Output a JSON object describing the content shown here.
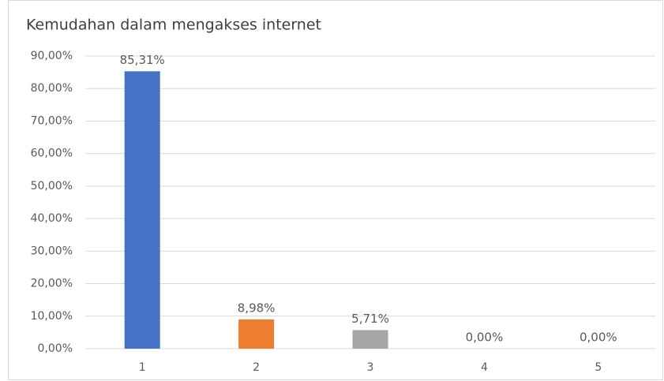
{
  "chart_data": {
    "type": "bar",
    "title": "Kemudahan dalam mengakses internet",
    "categories": [
      "1",
      "2",
      "3",
      "4",
      "5"
    ],
    "values": [
      85.31,
      8.98,
      5.71,
      0,
      0
    ],
    "value_labels": [
      "85,31%",
      "8,98%",
      "5,71%",
      "0,00%",
      "0,00%"
    ],
    "colors": [
      "#4472c4",
      "#ed7d31",
      "#a5a5a5",
      "#ffc000",
      "#5b9bd5"
    ],
    "ylim": [
      0,
      90
    ],
    "yticks": [
      {
        "value": 0,
        "label": "0,00%"
      },
      {
        "value": 10,
        "label": "10,00%"
      },
      {
        "value": 20,
        "label": "20,00%"
      },
      {
        "value": 30,
        "label": "30,00%"
      },
      {
        "value": 40,
        "label": "40,00%"
      },
      {
        "value": 50,
        "label": "50,00%"
      },
      {
        "value": 60,
        "label": "60,00%"
      },
      {
        "value": 70,
        "label": "70,00%"
      },
      {
        "value": 80,
        "label": "80,00%"
      },
      {
        "value": 90,
        "label": "90,00%"
      }
    ],
    "grid": true
  }
}
